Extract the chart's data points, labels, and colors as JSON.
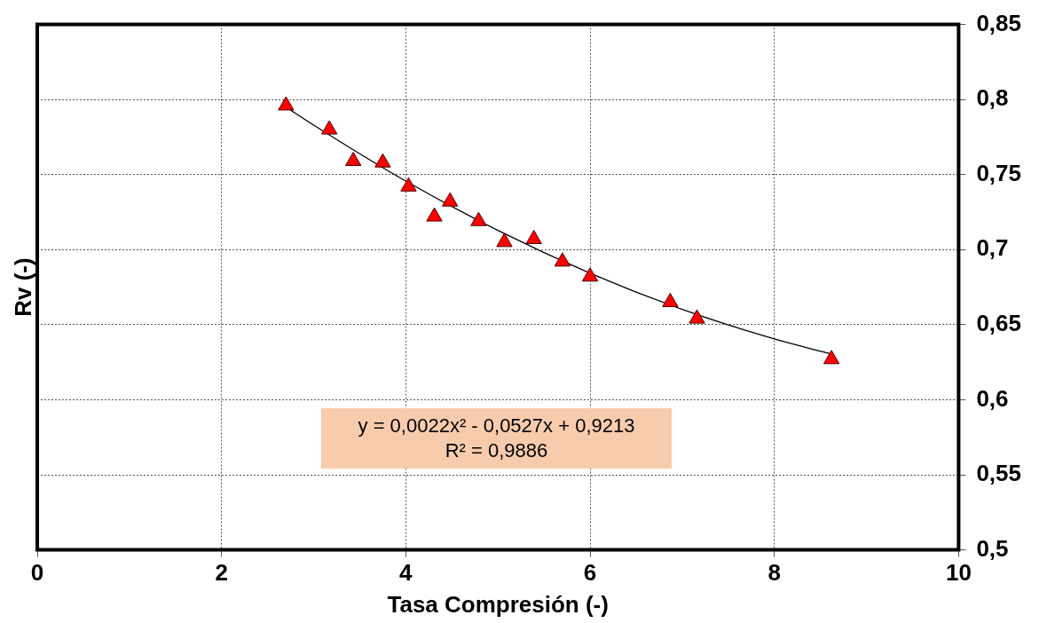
{
  "chart_data": {
    "type": "scatter",
    "xlabel": "Tasa Compresión (-)",
    "ylabel": "Rv (-)",
    "xlim": [
      0,
      10
    ],
    "xticks": [
      0,
      2,
      4,
      6,
      8,
      10
    ],
    "ylim": [
      0.5,
      0.85
    ],
    "yticks": [
      {
        "value": 0.5,
        "label": "0,5"
      },
      {
        "value": 0.55,
        "label": "0,55"
      },
      {
        "value": 0.6,
        "label": "0,6"
      },
      {
        "value": 0.65,
        "label": "0,65"
      },
      {
        "value": 0.7,
        "label": "0,7"
      },
      {
        "value": 0.75,
        "label": "0,75"
      },
      {
        "value": 0.8,
        "label": "0,8"
      },
      {
        "value": 0.85,
        "label": "0,85"
      }
    ],
    "grid": true,
    "legend": false,
    "marker": "triangle",
    "annotations": [
      "y = 0,0022x² - 0,0527x + 0,9213",
      "R² = 0,9886"
    ],
    "series": [
      {
        "type": "scatter",
        "color": "#ff0000",
        "x": [
          2.7,
          3.17,
          3.43,
          3.75,
          4.03,
          4.31,
          4.48,
          4.79,
          5.07,
          5.39,
          5.7,
          6.0,
          6.87,
          7.16,
          8.62
        ],
        "values": [
          0.796,
          0.78,
          0.759,
          0.758,
          0.742,
          0.722,
          0.732,
          0.719,
          0.705,
          0.707,
          0.692,
          0.682,
          0.665,
          0.654,
          0.627
        ]
      },
      {
        "type": "line",
        "color": "#000000",
        "marker": "none",
        "x": [
          2.7,
          3,
          4,
          5,
          6,
          7,
          8,
          8.6
        ],
        "values": [
          0.795,
          0.783,
          0.7457,
          0.7128,
          0.6843,
          0.6602,
          0.6405,
          0.6308
        ]
      }
    ]
  }
}
